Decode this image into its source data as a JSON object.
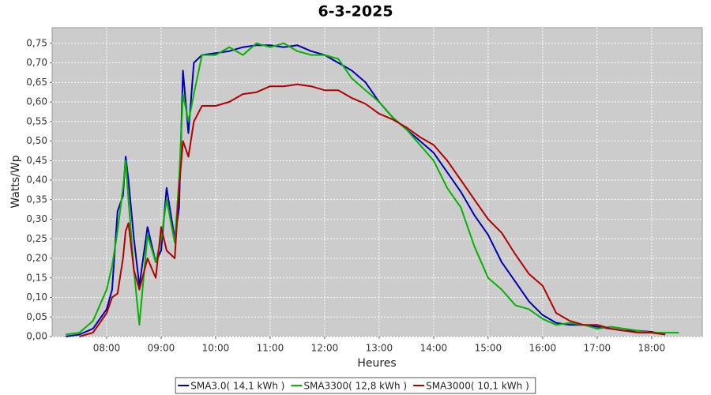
{
  "chart_data": {
    "type": "line",
    "title": "6-3-2025",
    "x_label": "Heures",
    "y_label": "Watts/Wp",
    "xlim": [
      7,
      18.93
    ],
    "ylim": [
      0,
      0.79
    ],
    "xticks": [
      {
        "value": 8,
        "label": "08:00"
      },
      {
        "value": 9,
        "label": "09:00"
      },
      {
        "value": 10,
        "label": "10:00"
      },
      {
        "value": 11,
        "label": "11:00"
      },
      {
        "value": 12,
        "label": "12:00"
      },
      {
        "value": 13,
        "label": "13:00"
      },
      {
        "value": 14,
        "label": "14:00"
      },
      {
        "value": 15,
        "label": "15:00"
      },
      {
        "value": 16,
        "label": "16:00"
      },
      {
        "value": 17,
        "label": "17:00"
      },
      {
        "value": 18,
        "label": "18:00"
      }
    ],
    "yticks": [
      {
        "value": 0,
        "label": "0,00"
      },
      {
        "value": 0.05,
        "label": "0,05"
      },
      {
        "value": 0.1,
        "label": "0,10"
      },
      {
        "value": 0.15,
        "label": "0,15"
      },
      {
        "value": 0.2,
        "label": "0,20"
      },
      {
        "value": 0.25,
        "label": "0,25"
      },
      {
        "value": 0.3,
        "label": "0,30"
      },
      {
        "value": 0.35,
        "label": "0,35"
      },
      {
        "value": 0.4,
        "label": "0,40"
      },
      {
        "value": 0.45,
        "label": "0,45"
      },
      {
        "value": 0.5,
        "label": "0,50"
      },
      {
        "value": 0.55,
        "label": "0,55"
      },
      {
        "value": 0.6,
        "label": "0,60"
      },
      {
        "value": 0.65,
        "label": "0,65"
      },
      {
        "value": 0.7,
        "label": "0,70"
      },
      {
        "value": 0.75,
        "label": "0,75"
      }
    ],
    "grid": true,
    "x": [
      7.25,
      7.5,
      7.75,
      8,
      8.1,
      8.2,
      8.3,
      8.35,
      8.4,
      8.5,
      8.6,
      8.75,
      8.9,
      9,
      9.1,
      9.25,
      9.33,
      9.4,
      9.5,
      9.6,
      9.75,
      10,
      10.25,
      10.5,
      10.75,
      11,
      11.25,
      11.5,
      11.75,
      12,
      12.25,
      12.5,
      12.75,
      13,
      13.25,
      13.5,
      13.75,
      14,
      14.25,
      14.5,
      14.75,
      15,
      15.25,
      15.5,
      15.75,
      16,
      16.25,
      16.5,
      16.75,
      17,
      17.25,
      17.5,
      17.75,
      18,
      18.25,
      18.5
    ],
    "series": [
      {
        "name": "SMA3.0( 14,1 kWh )",
        "color": "#0000b4",
        "values": [
          0,
          0.005,
          0.02,
          0.07,
          0.12,
          0.32,
          0.36,
          0.46,
          0.4,
          0.25,
          0.13,
          0.28,
          0.19,
          0.22,
          0.38,
          0.25,
          0.33,
          0.68,
          0.52,
          0.7,
          0.72,
          0.725,
          0.73,
          0.74,
          0.745,
          0.745,
          0.74,
          0.745,
          0.73,
          0.72,
          0.7,
          0.68,
          0.65,
          0.6,
          0.56,
          0.53,
          0.5,
          0.47,
          0.42,
          0.37,
          0.31,
          0.26,
          0.19,
          0.14,
          0.09,
          0.055,
          0.035,
          0.03,
          0.03,
          0.025,
          0.02,
          0.015,
          0.015,
          0.012,
          0.005,
          null
        ]
      },
      {
        "name": "SMA3300( 12,8 kWh )",
        "color": "#00b400",
        "values": [
          0.005,
          0.01,
          0.04,
          0.12,
          0.18,
          0.27,
          0.38,
          0.45,
          0.35,
          0.17,
          0.03,
          0.26,
          0.19,
          0.25,
          0.35,
          0.24,
          0.4,
          0.62,
          0.55,
          0.62,
          0.72,
          0.72,
          0.74,
          0.72,
          0.75,
          0.74,
          0.75,
          0.73,
          0.72,
          0.72,
          0.71,
          0.66,
          0.63,
          0.6,
          0.56,
          0.53,
          0.49,
          0.45,
          0.38,
          0.33,
          0.23,
          0.15,
          0.12,
          0.08,
          0.07,
          0.045,
          0.03,
          0.035,
          0.03,
          0.02,
          0.025,
          0.02,
          0.015,
          0.01,
          0.01,
          0.01
        ]
      },
      {
        "name": "SMA3000( 10,1 kWh )",
        "color": "#b40000",
        "values": [
          null,
          0,
          0.01,
          0.06,
          0.1,
          0.11,
          0.2,
          0.27,
          0.29,
          0.17,
          0.12,
          0.2,
          0.15,
          0.28,
          0.22,
          0.2,
          0.38,
          0.5,
          0.46,
          0.55,
          0.59,
          0.59,
          0.6,
          0.62,
          0.625,
          0.64,
          0.64,
          0.645,
          0.64,
          0.63,
          0.63,
          0.61,
          0.595,
          0.57,
          0.555,
          0.535,
          0.51,
          0.49,
          0.45,
          0.4,
          0.35,
          0.3,
          0.265,
          0.21,
          0.16,
          0.13,
          0.06,
          0.04,
          0.03,
          0.03,
          0.02,
          0.015,
          0.01,
          0.01,
          0.005,
          null
        ]
      }
    ]
  }
}
